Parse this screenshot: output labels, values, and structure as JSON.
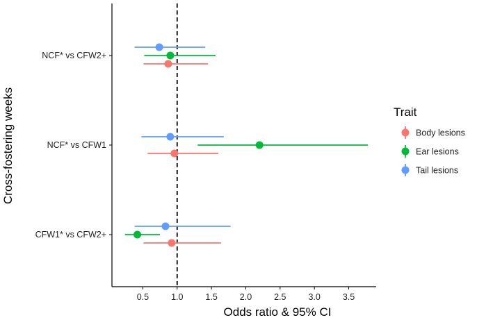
{
  "chart_data": {
    "type": "forest-plot",
    "xlabel": "Odds ratio & 95% CI",
    "ylabel": "Cross-fostering weeks",
    "xlim": [
      0.05,
      3.9
    ],
    "xticks": [
      0.5,
      1.0,
      1.5,
      2.0,
      2.5,
      3.0,
      3.5
    ],
    "xtick_labels": [
      "0.5",
      "1.0",
      "1.5",
      "2.0",
      "2.5",
      "3.0",
      "3.5"
    ],
    "reference_line": 1.0,
    "categories": [
      "NCF* vs CFW2+",
      "NCF* vs CFW1",
      "CFW1* vs CFW2+"
    ],
    "legend": {
      "title": "Trait",
      "position": "right",
      "entries": [
        "Body lesions",
        "Ear lesions",
        "Tail lesions"
      ]
    },
    "series": [
      {
        "name": "Body lesions",
        "color": "#F8766D",
        "points": [
          {
            "category": "NCF* vs CFW2+",
            "or": 0.87,
            "lo": 0.51,
            "hi": 1.45
          },
          {
            "category": "NCF* vs CFW1",
            "or": 0.96,
            "lo": 0.57,
            "hi": 1.6
          },
          {
            "category": "CFW1* vs CFW2+",
            "or": 0.92,
            "lo": 0.51,
            "hi": 1.64
          }
        ]
      },
      {
        "name": "Ear lesions",
        "color": "#00BA38",
        "points": [
          {
            "category": "NCF* vs CFW2+",
            "or": 0.9,
            "lo": 0.52,
            "hi": 1.56
          },
          {
            "category": "NCF* vs CFW1",
            "or": 2.2,
            "lo": 1.3,
            "hi": 3.78
          },
          {
            "category": "CFW1* vs CFW2+",
            "or": 0.42,
            "lo": 0.24,
            "hi": 0.75
          }
        ]
      },
      {
        "name": "Tail lesions",
        "color": "#619CFF",
        "points": [
          {
            "category": "NCF* vs CFW2+",
            "or": 0.74,
            "lo": 0.38,
            "hi": 1.41
          },
          {
            "category": "NCF* vs CFW1",
            "or": 0.9,
            "lo": 0.48,
            "hi": 1.68
          },
          {
            "category": "CFW1* vs CFW2+",
            "or": 0.83,
            "lo": 0.38,
            "hi": 1.78
          }
        ]
      }
    ]
  }
}
